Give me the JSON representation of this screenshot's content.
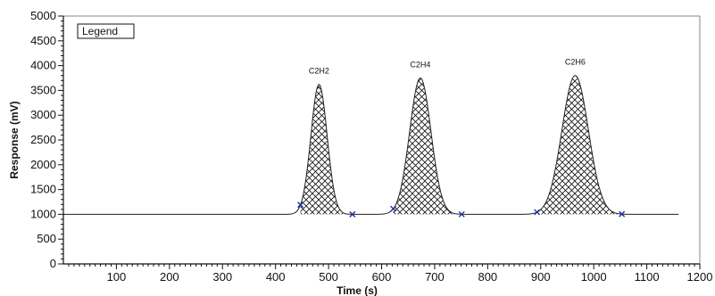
{
  "chart_data": {
    "type": "line",
    "title": "",
    "xlabel": "Time (s)",
    "ylabel": "Response (mV)",
    "xlim": [
      0,
      1200
    ],
    "ylim": [
      0,
      5000
    ],
    "xticks": [
      100,
      200,
      300,
      400,
      500,
      600,
      700,
      800,
      900,
      1000,
      1100,
      1200
    ],
    "yticks": [
      0,
      500,
      1000,
      1500,
      2000,
      2500,
      3000,
      3500,
      4000,
      4500,
      5000
    ],
    "legend_label": "Legend",
    "legend_position": "top-left",
    "baseline": 1000,
    "x_end": 1160,
    "grid": false,
    "line_color": "#222222",
    "marker_color": "#1f2fa0",
    "peaks": [
      {
        "label": "C2H2",
        "center": 482,
        "height": 3620,
        "start": 447,
        "end": 545
      },
      {
        "label": "C2H4",
        "center": 673,
        "height": 3750,
        "start": 622,
        "end": 751
      },
      {
        "label": "C2H6",
        "center": 965,
        "height": 3800,
        "start": 893,
        "end": 1053
      }
    ]
  }
}
